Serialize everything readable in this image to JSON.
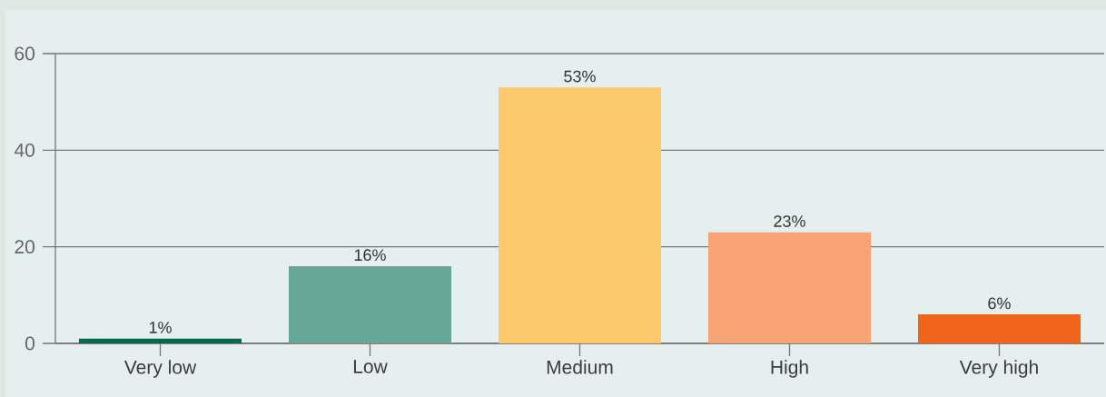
{
  "chart_data": {
    "type": "bar",
    "categories": [
      "Very low",
      "Low",
      "Medium",
      "High",
      "Very high"
    ],
    "values": [
      1,
      16,
      53,
      23,
      6
    ],
    "colors": [
      "#006b4f",
      "#66a797",
      "#fcca6c",
      "#f7a375",
      "#f0641c"
    ],
    "value_labels": [
      "1%",
      "16%",
      "53%",
      "23%",
      "6%"
    ],
    "ylim": [
      0,
      60
    ],
    "yticks": [
      0,
      20,
      40,
      60
    ],
    "grid": "y"
  }
}
